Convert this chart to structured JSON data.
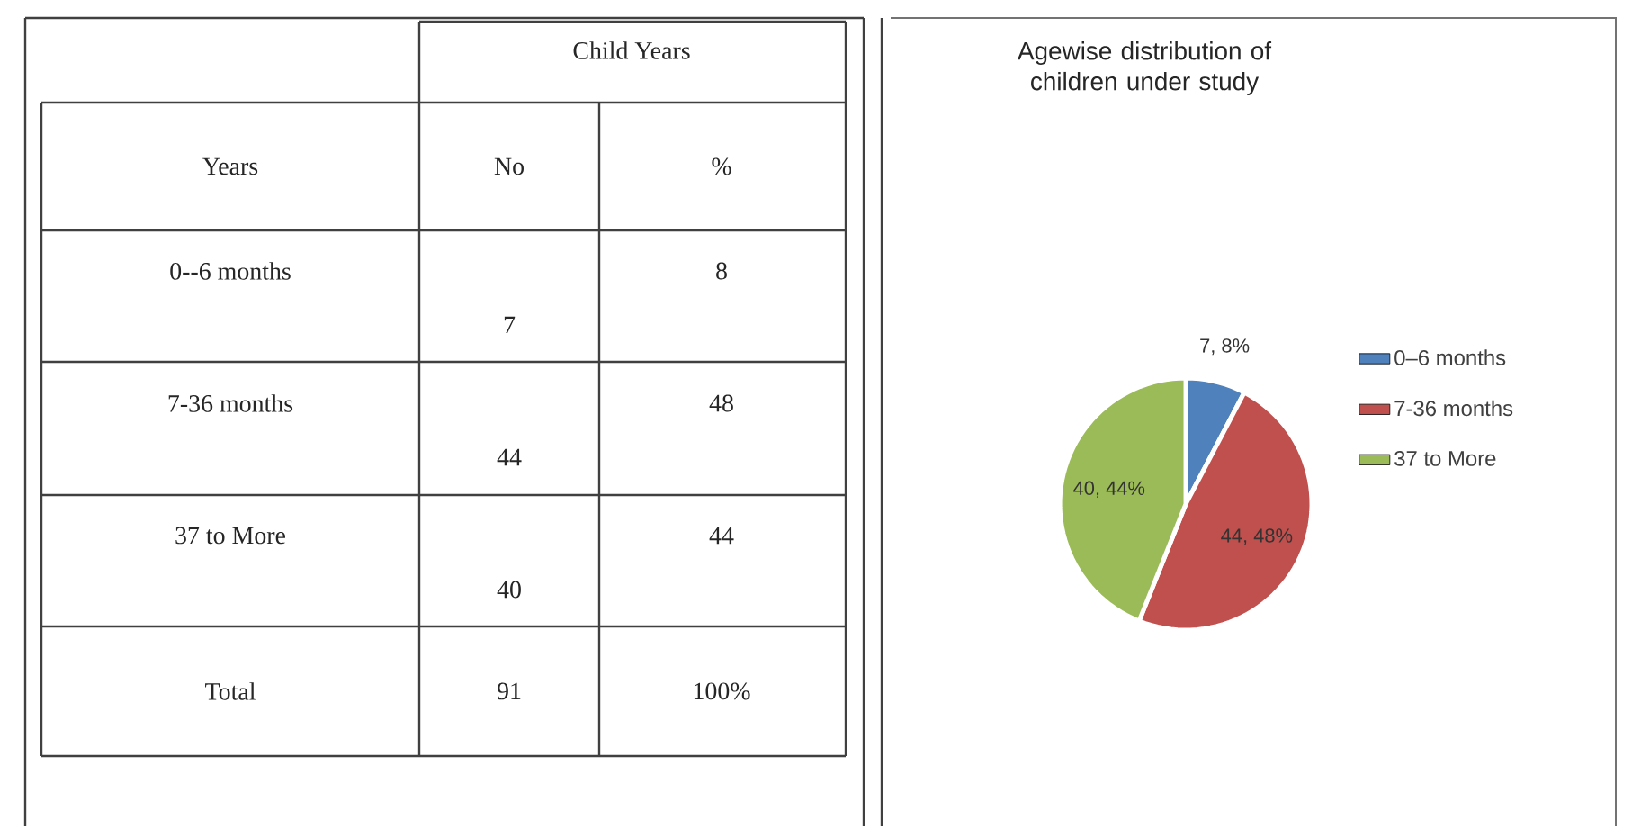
{
  "chart_data": [
    {
      "type": "other",
      "annotations": [
        "Child Years",
        "Years",
        "No",
        "%",
        "0--6 months",
        "7",
        "8",
        "7-36 months",
        "44",
        "48",
        "37 to More",
        "40",
        "44",
        "Total",
        "91",
        "100%"
      ]
    },
    {
      "type": "pie",
      "title": "Agewise distribution of children under study",
      "categories": [
        "0–6 months",
        "7-36 months",
        "37 to More"
      ],
      "values": [
        7,
        44,
        40
      ],
      "colors": [
        "#4f81bd",
        "#c0504d",
        "#9bbb59"
      ],
      "value_labels": [
        "7, 8%",
        "44, 48%",
        "40, 44%"
      ],
      "legend": "right"
    }
  ]
}
